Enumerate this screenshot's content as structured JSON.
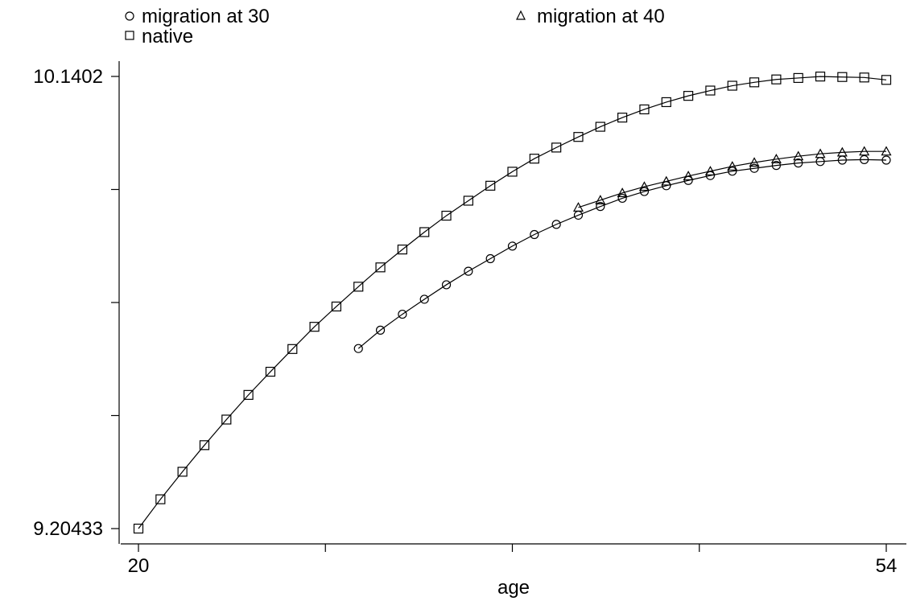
{
  "chart_data": {
    "type": "line",
    "xlabel": "age",
    "ylabel": "",
    "xlim": [
      20,
      54
    ],
    "ylim": [
      9.20433,
      10.1402
    ],
    "x_ticks": [
      20,
      28.5,
      37,
      45.5,
      54
    ],
    "x_tick_labels": [
      "20",
      "",
      "",
      "",
      "54"
    ],
    "y_ticks": [
      9.20433,
      9.4383,
      9.67227,
      9.90623,
      10.1402
    ],
    "y_tick_labels": [
      "9.20433",
      "",
      "",
      "",
      "10.1402"
    ],
    "legend": {
      "placement": "top"
    },
    "series": [
      {
        "name": "migration at 30",
        "marker": "circle",
        "x": [
          30,
          31,
          32,
          33,
          34,
          35,
          36,
          37,
          38,
          39,
          40,
          41,
          42,
          43,
          44,
          45,
          46,
          47,
          48,
          49,
          50,
          51,
          52,
          53,
          54
        ],
        "y": [
          9.577,
          9.615,
          9.648,
          9.679,
          9.709,
          9.737,
          9.763,
          9.789,
          9.813,
          9.834,
          9.853,
          9.871,
          9.888,
          9.902,
          9.914,
          9.925,
          9.935,
          9.944,
          9.95,
          9.956,
          9.961,
          9.964,
          9.967,
          9.968,
          9.967
        ]
      },
      {
        "name": "migration at 40",
        "marker": "triangle",
        "x": [
          40,
          41,
          42,
          43,
          44,
          45,
          46,
          47,
          48,
          49,
          50,
          51,
          52,
          53,
          54
        ],
        "y": [
          9.869,
          9.884,
          9.899,
          9.912,
          9.923,
          9.934,
          9.944,
          9.954,
          9.962,
          9.969,
          9.975,
          9.98,
          9.983,
          9.985,
          9.985
        ]
      },
      {
        "name": "native",
        "marker": "square",
        "x": [
          20,
          21,
          22,
          23,
          24,
          25,
          26,
          27,
          28,
          29,
          30,
          31,
          32,
          33,
          34,
          35,
          36,
          37,
          38,
          39,
          40,
          41,
          42,
          43,
          44,
          45,
          46,
          47,
          48,
          49,
          50,
          51,
          52,
          53,
          54
        ],
        "y": [
          9.20433,
          9.265,
          9.322,
          9.377,
          9.43,
          9.481,
          9.529,
          9.576,
          9.622,
          9.664,
          9.705,
          9.745,
          9.782,
          9.818,
          9.852,
          9.883,
          9.914,
          9.943,
          9.97,
          9.993,
          10.015,
          10.036,
          10.055,
          10.072,
          10.087,
          10.1,
          10.111,
          10.121,
          10.128,
          10.134,
          10.137,
          10.14,
          10.139,
          10.138,
          10.133
        ]
      }
    ]
  }
}
